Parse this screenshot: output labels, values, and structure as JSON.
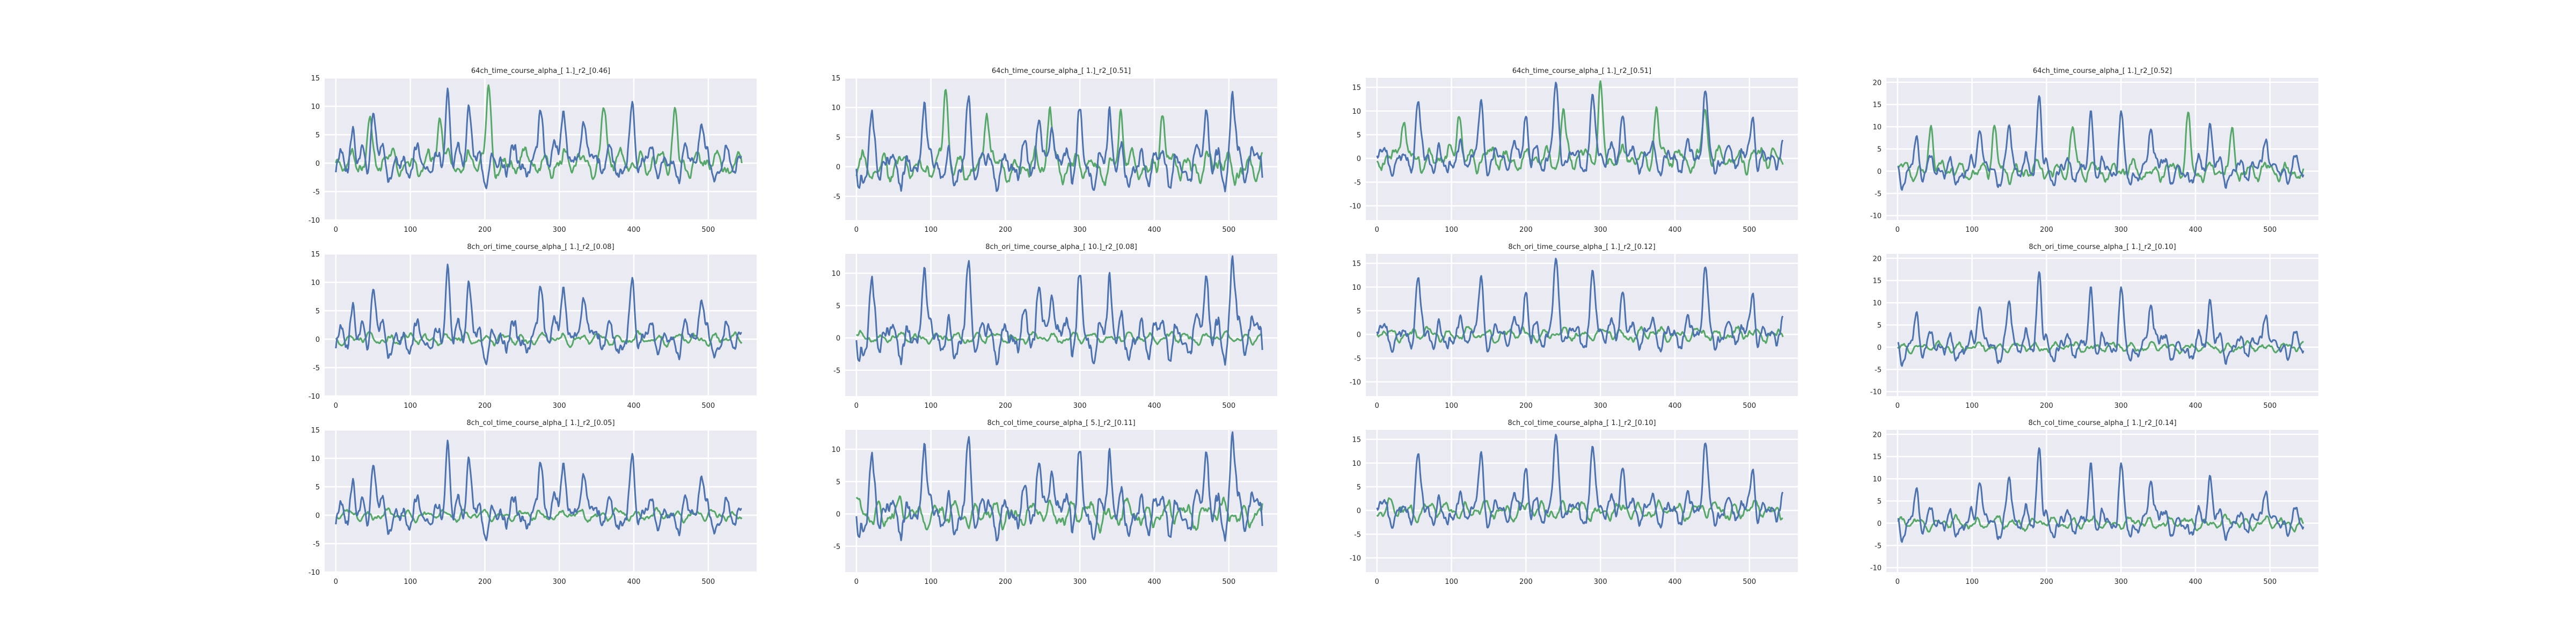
{
  "chart_data": [
    {
      "type": "line",
      "title": "64ch_time_course_alpha_[ 1.]_r2_[0.46]",
      "x_ticks": [
        0,
        100,
        200,
        300,
        400,
        500
      ],
      "xlim": [
        -15,
        565
      ],
      "y_ticks": [
        -10,
        -5,
        0,
        5,
        10,
        15
      ],
      "ylim": [
        -10,
        15
      ],
      "colors": {
        "measured": "#4c72b0",
        "predicted": "#55a868"
      },
      "series": [
        {
          "role": "measured",
          "seed": 11,
          "amp": 3.2,
          "spikes": [
            [
              23,
              8
            ],
            [
              50,
              9
            ],
            [
              150,
              14
            ],
            [
              178,
              10
            ],
            [
              275,
              12
            ],
            [
              305,
              11
            ],
            [
              332,
              11
            ],
            [
              398,
              9
            ],
            [
              490,
              8
            ]
          ],
          "x": [
            0,
            545
          ]
        },
        {
          "role": "predicted",
          "seed": 12,
          "amp": 2.4,
          "spikes": [
            [
              45,
              8
            ],
            [
              140,
              9
            ],
            [
              205,
              13
            ],
            [
              360,
              10
            ],
            [
              455,
              9
            ]
          ],
          "x": [
            0,
            545
          ]
        }
      ]
    },
    {
      "type": "line",
      "title": "64ch_time_course_alpha_[ 1.]_r2_[0.51]",
      "x_ticks": [
        0,
        100,
        200,
        300,
        400,
        500
      ],
      "xlim": [
        -15,
        565
      ],
      "y_ticks": [
        -5,
        0,
        5,
        10,
        15
      ],
      "ylim": [
        -9,
        15
      ],
      "colors": {
        "measured": "#4c72b0",
        "predicted": "#55a868"
      },
      "series": [
        {
          "role": "measured",
          "seed": 21,
          "amp": 3.6,
          "spikes": [
            [
              20,
              7
            ],
            [
              90,
              11
            ],
            [
              150,
              9
            ],
            [
              245,
              11
            ],
            [
              262,
              10
            ],
            [
              300,
              9
            ],
            [
              340,
              9
            ],
            [
              470,
              10
            ],
            [
              505,
              13
            ]
          ],
          "x": [
            0,
            545
          ]
        },
        {
          "role": "predicted",
          "seed": 22,
          "amp": 2.6,
          "spikes": [
            [
              120,
              14
            ],
            [
              175,
              10
            ],
            [
              260,
              11
            ],
            [
              355,
              9
            ],
            [
              410,
              10
            ]
          ],
          "x": [
            0,
            545
          ]
        }
      ]
    },
    {
      "type": "line",
      "title": "64ch_time_course_alpha_[ 1.]_r2_[0.51]",
      "x_ticks": [
        0,
        100,
        200,
        300,
        400,
        500
      ],
      "xlim": [
        -15,
        565
      ],
      "y_ticks": [
        -10,
        -5,
        0,
        5,
        10,
        15
      ],
      "ylim": [
        -13,
        17
      ],
      "colors": {
        "measured": "#4c72b0",
        "predicted": "#55a868"
      },
      "series": [
        {
          "role": "measured",
          "seed": 31,
          "amp": 3.4,
          "spikes": [
            [
              55,
              9
            ],
            [
              140,
              10
            ],
            [
              200,
              11
            ],
            [
              240,
              13
            ],
            [
              290,
              12
            ],
            [
              330,
              12
            ],
            [
              440,
              14
            ],
            [
              505,
              9
            ]
          ],
          "x": [
            0,
            545
          ]
        },
        {
          "role": "predicted",
          "seed": 32,
          "amp": 2.6,
          "spikes": [
            [
              35,
              9
            ],
            [
              110,
              10
            ],
            [
              250,
              11
            ],
            [
              300,
              16
            ],
            [
              375,
              11
            ],
            [
              440,
              12
            ]
          ],
          "x": [
            0,
            545
          ]
        }
      ]
    },
    {
      "type": "line",
      "title": "64ch_time_course_alpha_[ 1.]_r2_[0.52]",
      "x_ticks": [
        0,
        100,
        200,
        300,
        400,
        500
      ],
      "xlim": [
        -15,
        565
      ],
      "y_ticks": [
        -10,
        -5,
        0,
        5,
        10,
        15,
        20
      ],
      "ylim": [
        -11,
        21
      ],
      "colors": {
        "measured": "#4c72b0",
        "predicted": "#55a868"
      },
      "series": [
        {
          "role": "measured",
          "seed": 41,
          "amp": 3.3,
          "spikes": [
            [
              25,
              8
            ],
            [
              110,
              11
            ],
            [
              150,
              10
            ],
            [
              190,
              19
            ],
            [
              260,
              14
            ],
            [
              300,
              11
            ],
            [
              340,
              12
            ],
            [
              420,
              11
            ],
            [
              495,
              10
            ]
          ],
          "x": [
            0,
            545
          ]
        },
        {
          "role": "predicted",
          "seed": 42,
          "amp": 2.4,
          "spikes": [
            [
              45,
              11
            ],
            [
              130,
              9
            ],
            [
              235,
              10
            ],
            [
              390,
              12
            ],
            [
              450,
              9
            ]
          ],
          "x": [
            0,
            545
          ]
        }
      ]
    },
    {
      "type": "line",
      "title": "8ch_ori_time_course_alpha_[ 1.]_r2_[0.08]",
      "x_ticks": [
        0,
        100,
        200,
        300,
        400,
        500
      ],
      "xlim": [
        -15,
        565
      ],
      "y_ticks": [
        -10,
        -5,
        0,
        5,
        10,
        15
      ],
      "ylim": [
        -10,
        15
      ],
      "colors": {
        "measured": "#4c72b0",
        "predicted": "#55a868"
      },
      "series": [
        {
          "role": "measured",
          "seed": 11,
          "amp": 3.2,
          "spikes": [
            [
              23,
              8
            ],
            [
              50,
              9
            ],
            [
              150,
              14
            ],
            [
              178,
              10
            ],
            [
              275,
              12
            ],
            [
              305,
              11
            ],
            [
              332,
              11
            ],
            [
              398,
              9
            ],
            [
              490,
              8
            ]
          ],
          "x": [
            0,
            545
          ]
        },
        {
          "role": "predicted",
          "seed": 52,
          "amp": 1.1,
          "spikes": [],
          "x": [
            0,
            545
          ]
        }
      ]
    },
    {
      "type": "line",
      "title": "8ch_ori_time_course_alpha_[ 10.]_r2_[0.08]",
      "x_ticks": [
        0,
        100,
        200,
        300,
        400,
        500
      ],
      "xlim": [
        -15,
        565
      ],
      "y_ticks": [
        -5,
        0,
        5,
        10
      ],
      "ylim": [
        -9,
        13
      ],
      "colors": {
        "measured": "#4c72b0",
        "predicted": "#55a868"
      },
      "series": [
        {
          "role": "measured",
          "seed": 21,
          "amp": 3.6,
          "spikes": [
            [
              20,
              7
            ],
            [
              90,
              11
            ],
            [
              150,
              9
            ],
            [
              245,
              11
            ],
            [
              262,
              10
            ],
            [
              300,
              9
            ],
            [
              340,
              9
            ],
            [
              470,
              10
            ],
            [
              505,
              13
            ]
          ],
          "x": [
            0,
            545
          ]
        },
        {
          "role": "predicted",
          "seed": 62,
          "amp": 0.9,
          "spikes": [],
          "x": [
            0,
            545
          ]
        }
      ]
    },
    {
      "type": "line",
      "title": "8ch_ori_time_course_alpha_[ 1.]_r2_[0.12]",
      "x_ticks": [
        0,
        100,
        200,
        300,
        400,
        500
      ],
      "xlim": [
        -15,
        565
      ],
      "y_ticks": [
        -10,
        -5,
        0,
        5,
        10,
        15
      ],
      "ylim": [
        -13,
        17
      ],
      "colors": {
        "measured": "#4c72b0",
        "predicted": "#55a868"
      },
      "series": [
        {
          "role": "measured",
          "seed": 31,
          "amp": 3.4,
          "spikes": [
            [
              55,
              9
            ],
            [
              140,
              10
            ],
            [
              200,
              11
            ],
            [
              240,
              13
            ],
            [
              290,
              12
            ],
            [
              330,
              12
            ],
            [
              440,
              14
            ],
            [
              505,
              9
            ]
          ],
          "x": [
            0,
            545
          ]
        },
        {
          "role": "predicted",
          "seed": 72,
          "amp": 1.5,
          "spikes": [],
          "x": [
            0,
            545
          ]
        }
      ]
    },
    {
      "type": "line",
      "title": "8ch_ori_time_course_alpha_[ 1.]_r2_[0.10]",
      "x_ticks": [
        0,
        100,
        200,
        300,
        400,
        500
      ],
      "xlim": [
        -15,
        565
      ],
      "y_ticks": [
        -10,
        -5,
        0,
        5,
        10,
        15,
        20
      ],
      "ylim": [
        -11,
        21
      ],
      "colors": {
        "measured": "#4c72b0",
        "predicted": "#55a868"
      },
      "series": [
        {
          "role": "measured",
          "seed": 41,
          "amp": 3.3,
          "spikes": [
            [
              25,
              8
            ],
            [
              110,
              11
            ],
            [
              150,
              10
            ],
            [
              190,
              19
            ],
            [
              260,
              14
            ],
            [
              300,
              11
            ],
            [
              340,
              12
            ],
            [
              420,
              11
            ],
            [
              495,
              10
            ]
          ],
          "x": [
            0,
            545
          ]
        },
        {
          "role": "predicted",
          "seed": 82,
          "amp": 1.2,
          "spikes": [],
          "x": [
            0,
            545
          ]
        }
      ]
    },
    {
      "type": "line",
      "title": "8ch_col_time_course_alpha_[ 1.]_r2_[0.05]",
      "x_ticks": [
        0,
        100,
        200,
        300,
        400,
        500
      ],
      "xlim": [
        -15,
        565
      ],
      "y_ticks": [
        -10,
        -5,
        0,
        5,
        10,
        15
      ],
      "ylim": [
        -10,
        15
      ],
      "colors": {
        "measured": "#4c72b0",
        "predicted": "#55a868"
      },
      "series": [
        {
          "role": "measured",
          "seed": 11,
          "amp": 3.2,
          "spikes": [
            [
              23,
              8
            ],
            [
              50,
              9
            ],
            [
              150,
              14
            ],
            [
              178,
              10
            ],
            [
              275,
              12
            ],
            [
              305,
              11
            ],
            [
              332,
              11
            ],
            [
              398,
              9
            ],
            [
              490,
              8
            ]
          ],
          "x": [
            0,
            545
          ]
        },
        {
          "role": "predicted",
          "seed": 92,
          "amp": 1.1,
          "spikes": [],
          "x": [
            0,
            545
          ]
        }
      ]
    },
    {
      "type": "line",
      "title": "8ch_col_time_course_alpha_[ 5.]_r2_[0.11]",
      "x_ticks": [
        0,
        100,
        200,
        300,
        400,
        500
      ],
      "xlim": [
        -15,
        565
      ],
      "y_ticks": [
        -5,
        0,
        5,
        10
      ],
      "ylim": [
        -9,
        13
      ],
      "colors": {
        "measured": "#4c72b0",
        "predicted": "#55a868"
      },
      "series": [
        {
          "role": "measured",
          "seed": 21,
          "amp": 3.6,
          "spikes": [
            [
              20,
              7
            ],
            [
              90,
              11
            ],
            [
              150,
              9
            ],
            [
              245,
              11
            ],
            [
              262,
              10
            ],
            [
              300,
              9
            ],
            [
              340,
              9
            ],
            [
              470,
              10
            ],
            [
              505,
              13
            ]
          ],
          "x": [
            0,
            545
          ]
        },
        {
          "role": "predicted",
          "seed": 102,
          "amp": 2.2,
          "spikes": [],
          "x": [
            0,
            545
          ]
        }
      ]
    },
    {
      "type": "line",
      "title": "8ch_col_time_course_alpha_[ 1.]_r2_[0.10]",
      "x_ticks": [
        0,
        100,
        200,
        300,
        400,
        500
      ],
      "xlim": [
        -15,
        565
      ],
      "y_ticks": [
        -10,
        -5,
        0,
        5,
        10,
        15
      ],
      "ylim": [
        -13,
        17
      ],
      "colors": {
        "measured": "#4c72b0",
        "predicted": "#55a868"
      },
      "series": [
        {
          "role": "measured",
          "seed": 31,
          "amp": 3.4,
          "spikes": [
            [
              55,
              9
            ],
            [
              140,
              10
            ],
            [
              200,
              11
            ],
            [
              240,
              13
            ],
            [
              290,
              12
            ],
            [
              330,
              12
            ],
            [
              440,
              14
            ],
            [
              505,
              9
            ]
          ],
          "x": [
            0,
            545
          ]
        },
        {
          "role": "predicted",
          "seed": 112,
          "amp": 2.0,
          "spikes": [],
          "x": [
            0,
            545
          ]
        }
      ]
    },
    {
      "type": "line",
      "title": "8ch_col_time_course_alpha_[ 1.]_r2_[0.14]",
      "x_ticks": [
        0,
        100,
        200,
        300,
        400,
        500
      ],
      "xlim": [
        -15,
        565
      ],
      "y_ticks": [
        -10,
        -5,
        0,
        5,
        10,
        15,
        20
      ],
      "ylim": [
        -11,
        21
      ],
      "colors": {
        "measured": "#4c72b0",
        "predicted": "#55a868"
      },
      "series": [
        {
          "role": "measured",
          "seed": 41,
          "amp": 3.3,
          "spikes": [
            [
              25,
              8
            ],
            [
              110,
              11
            ],
            [
              150,
              10
            ],
            [
              190,
              19
            ],
            [
              260,
              14
            ],
            [
              300,
              11
            ],
            [
              340,
              12
            ],
            [
              420,
              11
            ],
            [
              495,
              10
            ]
          ],
          "x": [
            0,
            545
          ]
        },
        {
          "role": "predicted",
          "seed": 122,
          "amp": 1.5,
          "spikes": [],
          "x": [
            0,
            545
          ]
        }
      ]
    }
  ]
}
